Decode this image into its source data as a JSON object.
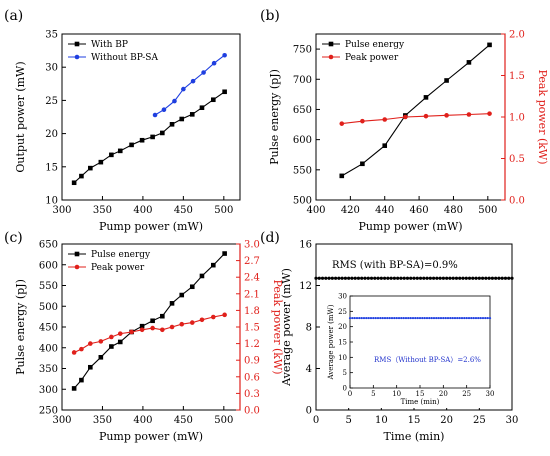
{
  "chart_data": [
    {
      "panel": "(a)",
      "type": "line",
      "xlabel": "Pump power (mW)",
      "ylabel": "Output power (mW)",
      "xlim": [
        300,
        520
      ],
      "ylim": [
        10,
        35
      ],
      "xticks": [
        300,
        350,
        400,
        450,
        500
      ],
      "yticks": [
        10,
        15,
        20,
        25,
        30,
        35
      ],
      "legend_position": "top-left",
      "series": [
        {
          "name": "With BP",
          "color": "#000000",
          "marker": "square",
          "x": [
            315,
            324,
            335,
            348,
            361,
            372,
            386,
            399,
            412,
            424,
            436,
            448,
            461,
            473,
            487,
            501
          ],
          "y": [
            12.6,
            13.6,
            14.8,
            15.7,
            16.8,
            17.4,
            18.3,
            19.0,
            19.5,
            20.1,
            21.4,
            22.2,
            22.9,
            23.9,
            25.1,
            26.3
          ]
        },
        {
          "name": "Without BP-SA",
          "color": "#1f3fe0",
          "marker": "circle",
          "x": [
            415,
            426,
            439,
            450,
            462,
            475,
            488,
            501
          ],
          "y": [
            22.8,
            23.6,
            24.9,
            26.7,
            27.9,
            29.2,
            30.6,
            31.8
          ]
        }
      ]
    },
    {
      "panel": "(b)",
      "type": "line",
      "xlabel": "Pump power (mW)",
      "ylabel": "Pulse energy (pJ)",
      "ylabel_right": "Peak power (kW)",
      "xlim": [
        400,
        510
      ],
      "ylim": [
        500,
        775
      ],
      "ylim_right": [
        0.0,
        2.0
      ],
      "xticks": [
        400,
        420,
        440,
        460,
        480,
        500
      ],
      "yticks": [
        500,
        550,
        600,
        650,
        700,
        750
      ],
      "yticks_right": [
        "0.0",
        "0.5",
        "1.0",
        "1.5",
        "2.0"
      ],
      "legend_position": "top-left",
      "series": [
        {
          "name": "Pulse energy",
          "color": "#000000",
          "marker": "square",
          "axis": "left",
          "x": [
            415,
            427,
            440,
            452,
            464,
            476,
            489,
            501
          ],
          "y": [
            540,
            560,
            590,
            640,
            670,
            698,
            728,
            757
          ]
        },
        {
          "name": "Peak power",
          "color": "#e0201b",
          "marker": "circle",
          "axis": "right",
          "x": [
            415,
            427,
            440,
            452,
            464,
            476,
            489,
            501
          ],
          "y": [
            0.92,
            0.95,
            0.97,
            1.0,
            1.01,
            1.02,
            1.03,
            1.04
          ]
        }
      ]
    },
    {
      "panel": "(c)",
      "type": "line",
      "xlabel": "Pump power (mW)",
      "ylabel": "Pulse energy (pJ)",
      "ylabel_right": "Peak power (kW)",
      "xlim": [
        300,
        520
      ],
      "ylim": [
        250,
        650
      ],
      "ylim_right": [
        0.0,
        3.0
      ],
      "xticks": [
        300,
        350,
        400,
        450,
        500
      ],
      "yticks": [
        250,
        300,
        350,
        400,
        450,
        500,
        550,
        600,
        650
      ],
      "yticks_right": [
        "0.0",
        "0.3",
        "0.6",
        "0.9",
        "1.2",
        "1.5",
        "1.8",
        "2.1",
        "2.4",
        "2.7",
        "3.0"
      ],
      "legend_position": "top-left",
      "series": [
        {
          "name": "Pulse energy",
          "color": "#000000",
          "marker": "square",
          "axis": "left",
          "x": [
            315,
            324,
            335,
            348,
            361,
            372,
            386,
            399,
            412,
            424,
            436,
            448,
            461,
            473,
            487,
            501
          ],
          "y": [
            302,
            322,
            353,
            377,
            403,
            414,
            438,
            452,
            465,
            476,
            507,
            527,
            547,
            573,
            599,
            627
          ]
        },
        {
          "name": "Peak power",
          "color": "#e0201b",
          "marker": "circle",
          "axis": "right",
          "x": [
            315,
            324,
            335,
            348,
            361,
            372,
            386,
            399,
            412,
            424,
            436,
            448,
            461,
            473,
            487,
            501
          ],
          "y": [
            1.04,
            1.1,
            1.2,
            1.24,
            1.32,
            1.38,
            1.41,
            1.45,
            1.48,
            1.45,
            1.5,
            1.55,
            1.58,
            1.63,
            1.68,
            1.72
          ]
        }
      ]
    },
    {
      "panel": "(d)",
      "type": "line",
      "xlabel": "Time (min)",
      "ylabel": "Average power (mW)",
      "xlim": [
        0,
        30
      ],
      "ylim": [
        0,
        16
      ],
      "xticks": [
        0,
        5,
        10,
        15,
        20,
        25,
        30
      ],
      "yticks": [
        0,
        4,
        8,
        12,
        16
      ],
      "annotation": "RMS (with BP-SA)=0.9%",
      "series": [
        {
          "name": "",
          "color": "#000000",
          "marker": "circle",
          "constant": 12.7,
          "step": 0.5
        }
      ],
      "inset": {
        "type": "line",
        "xlabel": "Time (min)",
        "ylabel": "Average power (mW)",
        "xlim": [
          0,
          30
        ],
        "ylim": [
          0,
          30
        ],
        "xticks": [
          0,
          5,
          10,
          15,
          20,
          25,
          30
        ],
        "yticks": [
          0,
          5,
          10,
          15,
          20,
          25,
          30
        ],
        "annotation": "RMS（Without BP-SA）=2.6%",
        "series": [
          {
            "name": "",
            "color": "#1f3fe0",
            "marker": "circle",
            "constant": 22.8,
            "step": 0.5
          }
        ]
      }
    }
  ]
}
